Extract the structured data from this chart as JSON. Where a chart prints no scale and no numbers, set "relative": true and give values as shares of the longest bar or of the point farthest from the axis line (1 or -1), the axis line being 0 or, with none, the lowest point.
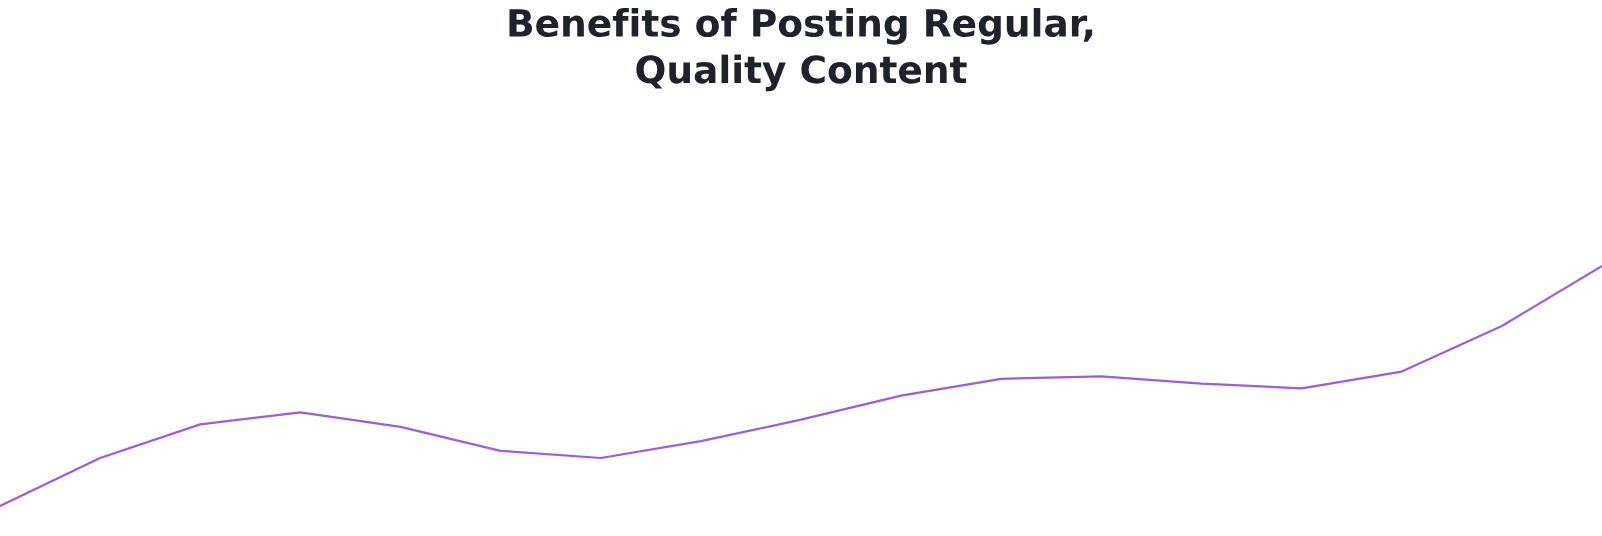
{
  "chart_data": {
    "type": "line",
    "title": "Benefits of Posting Regular,\nQuality Content",
    "relative": true,
    "categories": [
      null,
      null,
      null,
      null,
      null,
      null,
      null,
      null,
      null,
      null,
      null,
      null,
      null,
      null,
      null,
      null,
      null
    ],
    "series": [
      {
        "color": "#9a5ee0",
        "values": [
          0,
          0.2,
          0.34,
          0.39,
          0.33,
          0.23,
          0.2,
          0.27,
          0.36,
          0.46,
          0.53,
          0.54,
          0.51,
          0.49,
          0.56,
          0.75,
          1.0
        ]
      }
    ]
  }
}
